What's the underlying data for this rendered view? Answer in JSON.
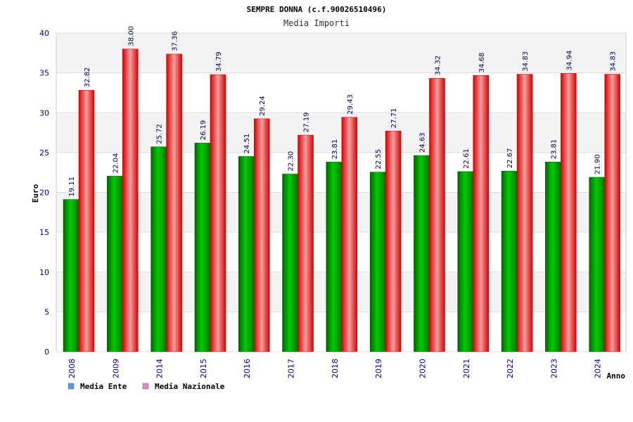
{
  "chart_data": {
    "type": "bar",
    "title": "SEMPRE DONNA (c.f.90026510496)",
    "subtitle": "Media Importi",
    "xlabel": "Anno",
    "ylabel": "Euro",
    "ylim": [
      0,
      40
    ],
    "yticks": [
      0,
      5,
      10,
      15,
      20,
      25,
      30,
      35,
      40
    ],
    "grid": true,
    "legend_position": "bottom-left",
    "categories": [
      "2008",
      "2009",
      "2014",
      "2015",
      "2016",
      "2017",
      "2018",
      "2019",
      "2020",
      "2021",
      "2022",
      "2023",
      "2024"
    ],
    "series": [
      {
        "name": "Media Ente",
        "color": "#00aa00",
        "legend_color": "#5599ee",
        "values": [
          19.11,
          22.04,
          25.72,
          26.19,
          24.51,
          22.3,
          23.81,
          22.55,
          24.63,
          22.61,
          22.67,
          23.81,
          21.9
        ],
        "labels": [
          "19.11",
          "22.04",
          "25.72",
          "26.19",
          "24.51",
          "22.30",
          "23.81",
          "22.55",
          "24.63",
          "22.61",
          "22.67",
          "23.81",
          "21.90"
        ]
      },
      {
        "name": "Media Nazionale",
        "color": "#ee0000",
        "legend_color": "#dd88cc",
        "values": [
          32.82,
          38.0,
          37.36,
          34.79,
          29.24,
          27.19,
          29.43,
          27.71,
          34.32,
          34.68,
          34.83,
          34.94,
          34.83
        ],
        "labels": [
          "32.82",
          "38.00",
          "37.36",
          "34.79",
          "29.24",
          "27.19",
          "29.43",
          "27.71",
          "34.32",
          "34.68",
          "34.83",
          "34.94",
          "34.83"
        ]
      }
    ]
  }
}
